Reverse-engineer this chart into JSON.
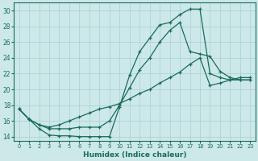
{
  "xlabel": "Humidex (Indice chaleur)",
  "bg_color": "#cce8e8",
  "line_color": "#1a6b5a",
  "grid_color": "#aacfcf",
  "xlim": [
    -0.5,
    23.5
  ],
  "ylim": [
    13.5,
    31
  ],
  "xticks": [
    0,
    1,
    2,
    3,
    4,
    5,
    6,
    7,
    8,
    9,
    10,
    11,
    12,
    13,
    14,
    15,
    16,
    17,
    18,
    19,
    20,
    21,
    22,
    23
  ],
  "yticks": [
    14,
    16,
    18,
    20,
    22,
    24,
    26,
    28,
    30
  ],
  "curve1_x": [
    0,
    1,
    2,
    3,
    4,
    5,
    6,
    7,
    8,
    9,
    10,
    11,
    12,
    13,
    14,
    15,
    16,
    17,
    18,
    19,
    20,
    21,
    22,
    23
  ],
  "curve1_y": [
    17.5,
    16.2,
    15.0,
    14.2,
    14.1,
    14.1,
    14.0,
    14.0,
    14.0,
    14.0,
    17.8,
    21.8,
    24.8,
    26.5,
    28.2,
    28.5,
    29.5,
    30.2,
    30.2,
    22.0,
    21.5,
    21.2,
    21.2,
    21.2
  ],
  "curve2_x": [
    0,
    1,
    2,
    3,
    4,
    5,
    6,
    7,
    8,
    9,
    10,
    11,
    12,
    13,
    14,
    15,
    16,
    17,
    18,
    19,
    20,
    21,
    22,
    23
  ],
  "curve2_y": [
    17.5,
    16.2,
    15.5,
    15.0,
    15.0,
    15.0,
    15.2,
    15.2,
    15.2,
    16.0,
    18.0,
    20.2,
    22.5,
    24.0,
    26.0,
    27.5,
    28.5,
    24.8,
    24.5,
    24.2,
    22.3,
    21.5,
    21.2,
    21.2
  ],
  "curve3_x": [
    0,
    1,
    2,
    3,
    4,
    5,
    6,
    7,
    8,
    9,
    10,
    11,
    12,
    13,
    14,
    15,
    16,
    17,
    18,
    19,
    20,
    21,
    22,
    23
  ],
  "curve3_y": [
    17.5,
    16.2,
    15.5,
    15.2,
    15.5,
    16.0,
    16.5,
    17.0,
    17.5,
    17.8,
    18.2,
    18.8,
    19.5,
    20.0,
    20.8,
    21.5,
    22.2,
    23.2,
    24.0,
    20.5,
    20.8,
    21.2,
    21.5,
    21.5
  ]
}
